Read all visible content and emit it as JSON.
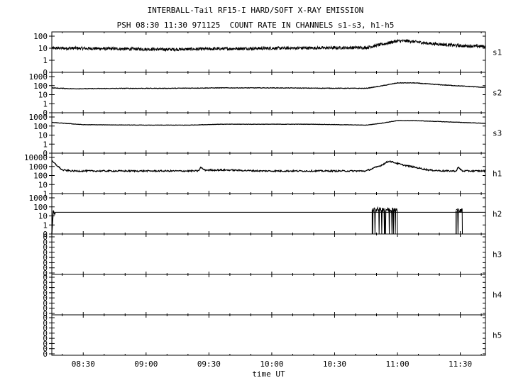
{
  "title": "INTERBALL-Tail RF15-I HARD/SOFT X-RAY EMISSION",
  "subtitle": "PSH 08:30 11:30 971125  COUNT RATE IN CHANNELS s1-s3, h1-h5",
  "chart_data": {
    "type": "line",
    "xlabel": "time UT",
    "x_ticks": [
      "08:30",
      "09:00",
      "09:30",
      "10:00",
      "10:30",
      "11:00",
      "11:30"
    ],
    "x_tick_minutes": [
      510,
      540,
      570,
      600,
      630,
      660,
      690
    ],
    "xlim_minutes": [
      495,
      702
    ],
    "panels": [
      {
        "label": "s1",
        "y_ticks": [
          "100",
          "10",
          "1",
          "0"
        ],
        "scale": "log",
        "profile": [
          [
            495,
            1.0
          ],
          [
            505,
            1.0
          ],
          [
            550,
            0.9
          ],
          [
            600,
            1.0
          ],
          [
            645,
            1.05
          ],
          [
            652,
            1.3
          ],
          [
            660,
            1.6
          ],
          [
            665,
            1.6
          ],
          [
            675,
            1.4
          ],
          [
            690,
            1.2
          ],
          [
            702,
            1.15
          ]
        ],
        "noise": 0.13
      },
      {
        "label": "s2",
        "y_ticks": [
          "1000",
          "100",
          "10",
          "1",
          "0"
        ],
        "scale": "log",
        "profile": [
          [
            495,
            1.75
          ],
          [
            505,
            1.65
          ],
          [
            530,
            1.7
          ],
          [
            550,
            1.7
          ],
          [
            575,
            1.75
          ],
          [
            600,
            1.75
          ],
          [
            620,
            1.72
          ],
          [
            645,
            1.7
          ],
          [
            652,
            1.95
          ],
          [
            660,
            2.3
          ],
          [
            668,
            2.3
          ],
          [
            680,
            2.1
          ],
          [
            702,
            1.8
          ]
        ],
        "noise": 0.03
      },
      {
        "label": "s3",
        "y_ticks": [
          "1000",
          "100",
          "10",
          "1",
          "0"
        ],
        "scale": "log",
        "profile": [
          [
            495,
            2.4
          ],
          [
            510,
            2.15
          ],
          [
            540,
            2.1
          ],
          [
            560,
            2.1
          ],
          [
            575,
            2.2
          ],
          [
            600,
            2.2
          ],
          [
            620,
            2.2
          ],
          [
            645,
            2.1
          ],
          [
            652,
            2.3
          ],
          [
            660,
            2.6
          ],
          [
            668,
            2.6
          ],
          [
            702,
            2.3
          ]
        ],
        "noise": 0.02
      },
      {
        "label": "h1",
        "y_ticks": [
          "10000",
          "1000",
          "100",
          "10",
          "1"
        ],
        "scale": "log",
        "profile": [
          [
            495,
            2.6
          ],
          [
            500,
            1.6
          ],
          [
            505,
            1.5
          ],
          [
            560,
            1.5
          ],
          [
            565,
            1.5
          ],
          [
            566,
            1.9
          ],
          [
            568,
            1.6
          ],
          [
            580,
            1.6
          ],
          [
            595,
            1.5
          ],
          [
            640,
            1.5
          ],
          [
            645,
            1.5
          ],
          [
            652,
            2.1
          ],
          [
            656,
            2.6
          ],
          [
            662,
            2.2
          ],
          [
            675,
            1.6
          ],
          [
            683,
            1.5
          ],
          [
            688,
            1.5
          ],
          [
            689,
            1.9
          ],
          [
            691,
            1.5
          ],
          [
            702,
            1.5
          ]
        ],
        "noise": 0.08
      },
      {
        "label": "h2",
        "y_ticks": [
          "1000",
          "100",
          "10",
          "1",
          "0"
        ],
        "scale": "log",
        "flat_level": 1.4,
        "burst_1": [
          648,
          660,
          1.7
        ],
        "burst_2": [
          688,
          691,
          1.6
        ]
      },
      {
        "label": "h3",
        "y_ticks": [
          "0",
          "0",
          "0",
          "0",
          "0",
          "0",
          "0",
          "0"
        ],
        "scale": "zero"
      },
      {
        "label": "h4",
        "y_ticks": [
          "0",
          "0",
          "0",
          "0",
          "0",
          "0",
          "0",
          "0"
        ],
        "scale": "zero"
      },
      {
        "label": "h5",
        "y_ticks": [
          "0",
          "0",
          "0",
          "0",
          "0",
          "0",
          "0",
          "0"
        ],
        "scale": "zero"
      }
    ]
  }
}
